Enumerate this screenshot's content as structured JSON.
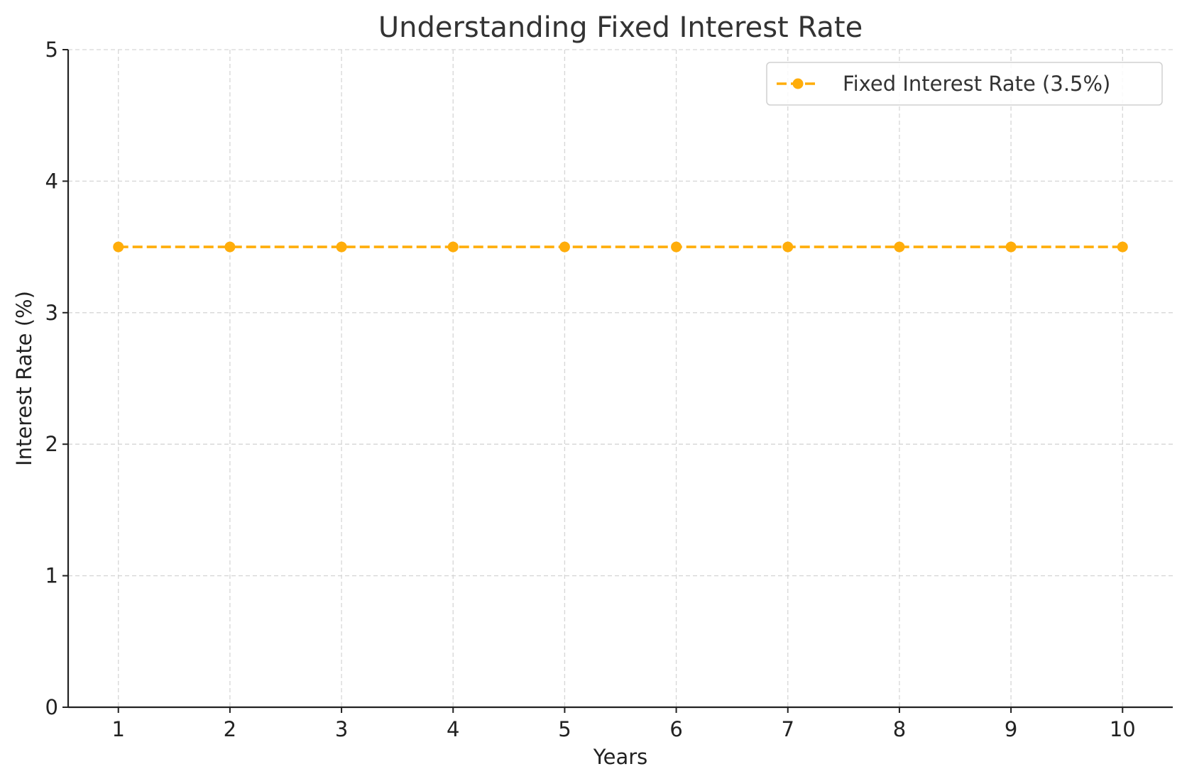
{
  "chart_data": {
    "type": "line",
    "title": "Understanding Fixed Interest Rate",
    "xlabel": "Years",
    "ylabel": "Interest Rate (%)",
    "x": [
      1,
      2,
      3,
      4,
      5,
      6,
      7,
      8,
      9,
      10
    ],
    "xticks": [
      1,
      2,
      3,
      4,
      5,
      6,
      7,
      8,
      9,
      10
    ],
    "yticks": [
      0,
      1,
      2,
      3,
      4,
      5
    ],
    "xlim": [
      0.55,
      10.45
    ],
    "ylim": [
      0,
      5
    ],
    "grid": true,
    "legend_position": "top-right",
    "series": [
      {
        "name": "Fixed Interest Rate (3.5%)",
        "values": [
          3.5,
          3.5,
          3.5,
          3.5,
          3.5,
          3.5,
          3.5,
          3.5,
          3.5,
          3.5
        ],
        "color": "#ffad0a",
        "line_style": "dashed",
        "marker": "circle"
      }
    ]
  }
}
